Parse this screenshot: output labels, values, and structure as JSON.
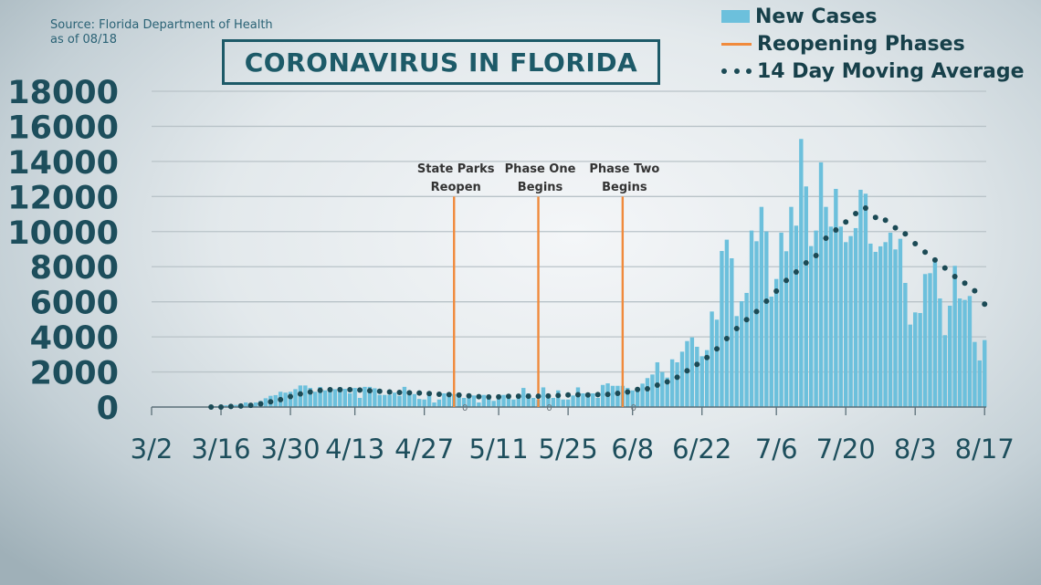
{
  "source": {
    "line1": "Source: Florida Department of Health",
    "line2": "as of 08/18"
  },
  "title": "CORONAVIRUS IN FLORIDA",
  "legend": [
    {
      "label": "New Cases",
      "color": "#6cc0dc",
      "symbol": "bar"
    },
    {
      "label": "Reopening Phases",
      "color": "#f08a3c",
      "symbol": "line"
    },
    {
      "label": "14 Day Moving Average",
      "color": "#1b4a55",
      "symbol": "dots"
    }
  ],
  "chart_data": {
    "type": "bar",
    "title": "CORONAVIRUS IN FLORIDA",
    "xlabel": "",
    "ylabel": "",
    "ylim": [
      0,
      18000
    ],
    "y_ticks": [
      "0",
      "2000",
      "4000",
      "6000",
      "8000",
      "10000",
      "12000",
      "14000",
      "16000",
      "18000"
    ],
    "x_ticks": [
      "3/2",
      "3/16",
      "3/30",
      "4/13",
      "4/27",
      "5/11",
      "5/25",
      "6/8",
      "6/22",
      "7/6",
      "7/20",
      "8/3",
      "8/17"
    ],
    "grid": true,
    "legend_position": "top-right",
    "series": [
      {
        "name": "New Cases",
        "type": "bar",
        "color": "#6cc0dc",
        "first_date": "3/2",
        "last_date": "8/17",
        "interval_days": 1,
        "values": [
          0,
          0,
          0,
          0,
          0,
          0,
          0,
          0,
          0,
          0,
          0,
          0,
          0,
          50,
          60,
          100,
          130,
          120,
          160,
          260,
          170,
          260,
          350,
          500,
          640,
          680,
          870,
          820,
          870,
          1020,
          1230,
          1230,
          1090,
          870,
          1140,
          950,
          990,
          1020,
          1130,
          1040,
          780,
          1090,
          520,
          1150,
          1150,
          1070,
          690,
          690,
          690,
          820,
          640,
          1150,
          690,
          740,
          460,
          430,
          660,
          260,
          430,
          780,
          660,
          740,
          660,
          520,
          520,
          660,
          260,
          690,
          690,
          350,
          520,
          690,
          690,
          430,
          690,
          1090,
          780,
          520,
          430,
          1120,
          660,
          520,
          950,
          430,
          430,
          660,
          1120,
          780,
          780,
          780,
          520,
          1260,
          1350,
          1210,
          1210,
          1210,
          1090,
          950,
          1040,
          1335,
          1650,
          1855,
          2550,
          1995,
          1680,
          2720,
          2550,
          3155,
          3760,
          3970,
          3435,
          2895,
          3245,
          5445,
          4980,
          8895,
          9540,
          8480,
          5185,
          6035,
          6505,
          10060,
          9450,
          11410,
          10010,
          6295,
          7300,
          9940,
          8880,
          11410,
          10340,
          15280,
          12575,
          9175,
          10060,
          13945,
          11410,
          10285,
          12435,
          10285,
          9400,
          9745,
          10200,
          12385,
          12160,
          9315,
          8845,
          9160,
          9400,
          9940,
          8985,
          9590,
          7075,
          4700,
          5395,
          5360,
          7580,
          7630,
          8465,
          6190,
          4095,
          5775,
          8050,
          6190,
          6105,
          6330,
          3710,
          2655,
          3815
        ]
      },
      {
        "name": "14 Day Moving Average",
        "type": "scatter",
        "color": "#1b4a55",
        "first_date": "3/14",
        "interval_days": 2,
        "values": [
          0,
          0,
          30,
          60,
          100,
          180,
          300,
          420,
          600,
          750,
          860,
          950,
          990,
          990,
          990,
          970,
          930,
          900,
          860,
          830,
          810,
          800,
          770,
          730,
          710,
          680,
          640,
          590,
          570,
          580,
          610,
          620,
          620,
          620,
          630,
          660,
          690,
          700,
          690,
          710,
          720,
          780,
          860,
          1000,
          1040,
          1250,
          1440,
          1700,
          2065,
          2430,
          2825,
          3315,
          3900,
          4475,
          4980,
          5445,
          6035,
          6605,
          7215,
          7700,
          8220,
          8635,
          9625,
          10095,
          10545,
          11030,
          11340,
          10805,
          10650,
          10215,
          9870,
          9315,
          8830,
          8380,
          7925,
          7440,
          7060,
          6625,
          5865
        ]
      }
    ],
    "reopening_phases": {
      "color": "#f08a3c",
      "line_top_value": 12000,
      "events": [
        {
          "label_line1": "State Parks",
          "label_line2": "Reopen",
          "date": "5/2",
          "marker": "0"
        },
        {
          "label_line1": "Phase One",
          "label_line2": "Begins",
          "date": "5/19",
          "marker": "0"
        },
        {
          "label_line1": "Phase Two",
          "label_line2": "Begins",
          "date": "6/6",
          "marker": "0"
        }
      ]
    }
  }
}
